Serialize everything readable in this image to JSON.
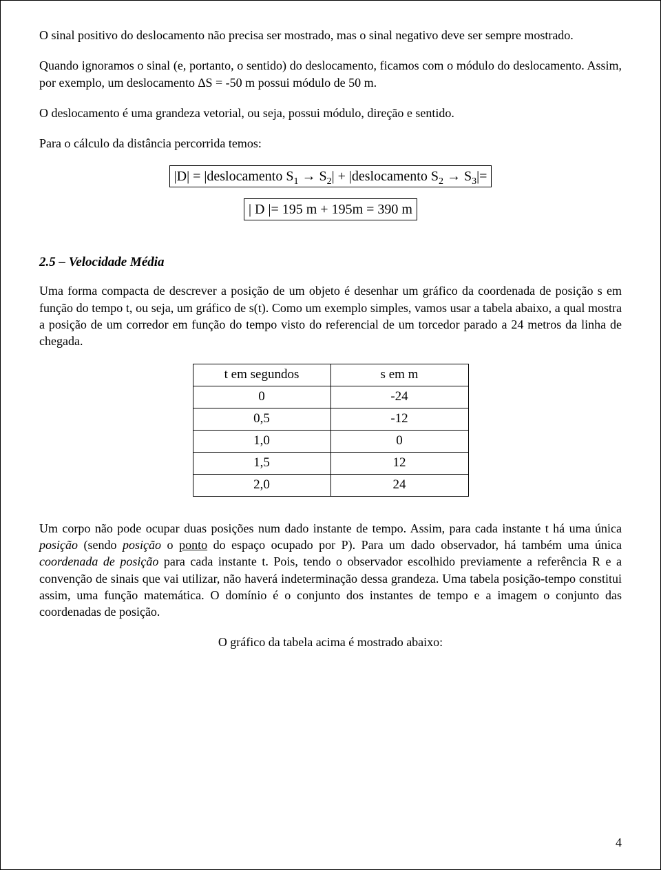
{
  "paragraphs": {
    "p1": "O sinal positivo do deslocamento não precisa ser mostrado, mas o sinal negativo deve ser sempre mostrado.",
    "p2": "Quando ignoramos o sinal (e, portanto, o sentido) do deslocamento, ficamos com o módulo do deslocamento. Assim, por exemplo, um deslocamento ∆S = -50 m possui módulo de 50 m.",
    "p3": "O deslocamento é uma grandeza vetorial, ou seja, possui módulo, direção e sentido.",
    "p4": "Para o cálculo da distância percorrida  temos:",
    "p5a": "Uma forma compacta de descrever a posição de um objeto é desenhar um gráfico da coordenada de posição s em função do tempo t, ou seja, um gráfico de s(t). Como um exemplo simples, vamos usar a tabela abaixo, a qual mostra a posição de um corredor em função do tempo visto do referencial de um torcedor parado a 24 metros da linha de chegada.",
    "p6_parts": {
      "a": "Um corpo não pode ocupar duas posições num dado instante de tempo. Assim, para cada instante t há uma única ",
      "b": "posição",
      "c": " (sendo ",
      "d": "posição",
      "e": " o ",
      "f": "ponto",
      "g": " do espaço ocupado por P). Para um dado observador, há também uma única ",
      "h": "coordenada de posição",
      "i": " para cada instante t. Pois, tendo o observador escolhido previamente a referência R e a convenção de sinais que vai utilizar, não haverá indeterminação dessa grandeza. Uma tabela posição-tempo constitui assim, uma função matemática. O domínio é o conjunto dos instantes de tempo e a imagem o conjunto das coordenadas de posição."
    },
    "p7": "O gráfico da tabela acima é mostrado abaixo:"
  },
  "formulas": {
    "f1_parts": {
      "pre": "|D| = |deslocamento S",
      "s1": "1",
      "arrow1": " → S",
      "s2": "2",
      "mid": "| + |deslocamento S",
      "s2b": "2",
      "arrow2": " → S",
      "s3": "3",
      "post": "|="
    },
    "f2": "| D |= 195 m + 195m = 390 m"
  },
  "section": {
    "number": "2.5",
    "title": "Velocidade Média",
    "sep": " – "
  },
  "table": {
    "headers": [
      "t em segundos",
      "s em m"
    ],
    "rows": [
      [
        "0",
        "-24"
      ],
      [
        "0,5",
        "-12"
      ],
      [
        "1,0",
        "0"
      ],
      [
        "1,5",
        "12"
      ],
      [
        "2,0",
        "24"
      ]
    ]
  },
  "page_number": "4",
  "colors": {
    "text": "#000000",
    "background": "#ffffff",
    "border": "#000000"
  },
  "fonts": {
    "body": "Bookman Old Style",
    "math": "Times New Roman",
    "body_size_pt": 14,
    "math_size_pt": 15
  }
}
